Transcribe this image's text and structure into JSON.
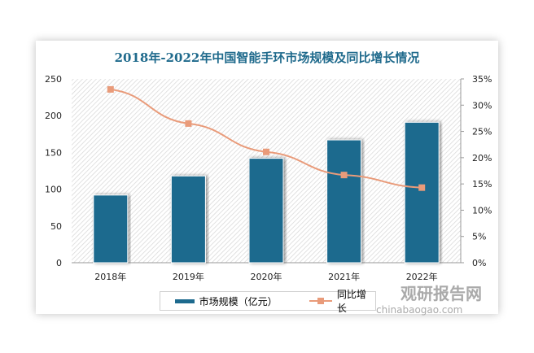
{
  "chart_data": {
    "type": "bar",
    "title": "2018年-2022年中国智能手环市场规模及同比增长情况",
    "categories": [
      "2018年",
      "2019年",
      "2020年",
      "2021年",
      "2022年"
    ],
    "series": [
      {
        "name": "市场规模（亿元）",
        "type": "bar",
        "axis": "left",
        "values": [
          92,
          118,
          142,
          167,
          191
        ],
        "color": "#1d6a8e"
      },
      {
        "name": "同比增长",
        "type": "line",
        "axis": "right",
        "values": [
          33.0,
          26.5,
          21.1,
          16.7,
          14.3
        ],
        "color": "#e99b7a"
      }
    ],
    "ylim": [
      0,
      250
    ],
    "yticks": [
      "0",
      "50",
      "100",
      "150",
      "200",
      "250"
    ],
    "y2lim": [
      0,
      35
    ],
    "y2ticks": [
      "0%",
      "5%",
      "10%",
      "15%",
      "20%",
      "25%",
      "30%",
      "35%"
    ],
    "grid": false,
    "legend": "bottom"
  },
  "watermark": {
    "cn": "观研报告网",
    "en": "chinabaogao.com"
  }
}
